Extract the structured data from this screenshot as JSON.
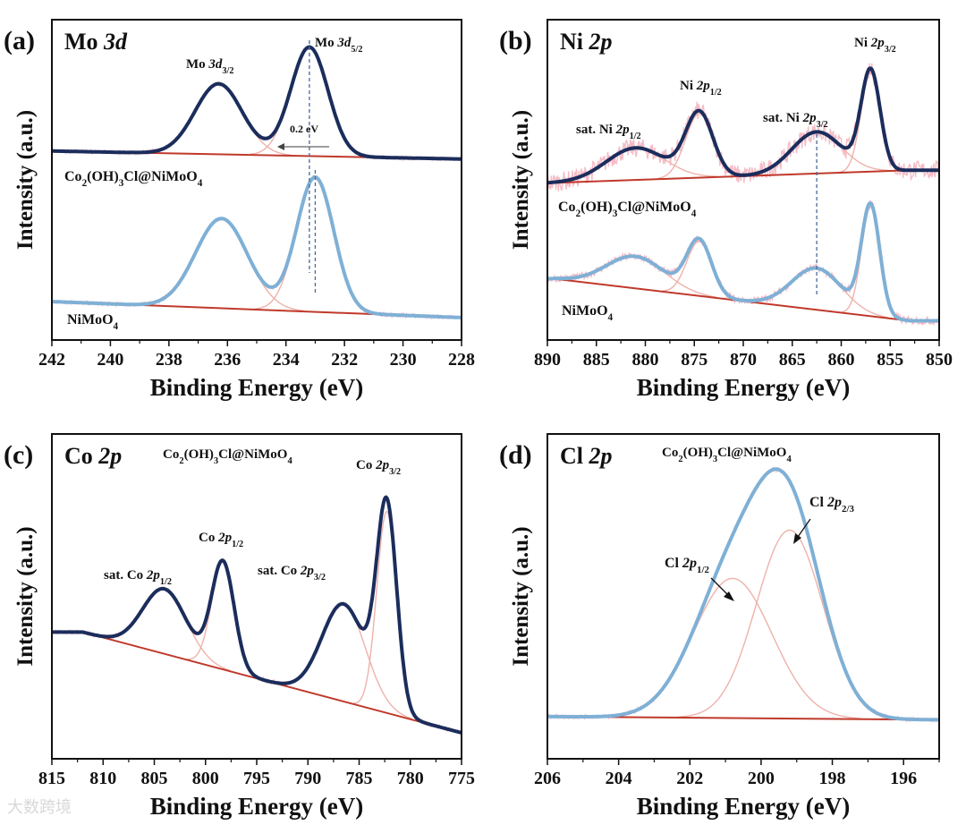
{
  "watermark": "大数跨境",
  "chart_data": [
    {
      "type": "line",
      "panel": "(a)",
      "title": {
        "element": "Mo ",
        "orbital": "3d"
      },
      "xlabel": "Binding Energy (eV)",
      "ylabel": "Intensity (a.u.)",
      "xlim": [
        242,
        228
      ],
      "ylim": [
        0,
        1
      ],
      "xticks": [
        242,
        240,
        238,
        236,
        234,
        232,
        230,
        228
      ],
      "shift_annotation": "0.2 eV",
      "peak_labels": [
        {
          "prefix": "Mo ",
          "orbital": "3d",
          "sub": "3/2"
        },
        {
          "prefix": "Mo ",
          "orbital": "3d",
          "sub": "5/2"
        }
      ],
      "series": [
        {
          "name": "Co2(OH)3Cl@NiMoO4",
          "fit_color": "#1b2d5c",
          "baseline": [
            [
              242,
              0.59
            ],
            [
              228,
              0.565
            ]
          ],
          "peaks": [
            {
              "center": 236.3,
              "height": 0.22,
              "fwhm": 1.9
            },
            {
              "center": 233.2,
              "height": 0.34,
              "fwhm": 1.5
            }
          ]
        },
        {
          "name": "NiMoO4",
          "fit_color": "#7fb0d6",
          "baseline": [
            [
              242,
              0.12
            ],
            [
              228,
              0.07
            ]
          ],
          "peaks": [
            {
              "center": 236.2,
              "height": 0.28,
              "fwhm": 2.1
            },
            {
              "center": 233.0,
              "height": 0.42,
              "fwhm": 1.5
            }
          ]
        }
      ],
      "reference_lines": [
        233.2,
        233.0
      ]
    },
    {
      "type": "line",
      "panel": "(b)",
      "title": {
        "element": "Ni ",
        "orbital": "2p"
      },
      "xlabel": "Binding Energy (eV)",
      "ylabel": "Intensity (a.u.)",
      "xlim": [
        890,
        850
      ],
      "ylim": [
        0,
        1
      ],
      "xticks": [
        890,
        885,
        880,
        875,
        870,
        865,
        860,
        855,
        850
      ],
      "peak_labels": [
        {
          "prefix": "Ni ",
          "orbital": "2p",
          "sub": "3/2"
        },
        {
          "prefix": "Ni ",
          "orbital": "2p",
          "sub": "1/2"
        },
        {
          "prefix": "sat. Ni ",
          "orbital": "2p",
          "sub": "3/2"
        },
        {
          "prefix": "sat. Ni ",
          "orbital": "2p",
          "sub": "1/2"
        }
      ],
      "series": [
        {
          "name": "Co2(OH)3Cl@NiMoO4",
          "fit_color": "#1b2d5c",
          "baseline": [
            [
              890,
              0.49
            ],
            [
              853,
              0.53
            ]
          ],
          "peaks": [
            {
              "center": 881,
              "height": 0.1,
              "fwhm": 7
            },
            {
              "center": 874.5,
              "height": 0.2,
              "fwhm": 3.3
            },
            {
              "center": 862.5,
              "height": 0.13,
              "fwhm": 6
            },
            {
              "center": 857,
              "height": 0.31,
              "fwhm": 2.3
            }
          ]
        },
        {
          "name": "NiMoO4",
          "fit_color": "#7fb0d6",
          "baseline": [
            [
              889,
              0.19
            ],
            [
              853,
              0.06
            ]
          ],
          "peaks": [
            {
              "center": 881,
              "height": 0.1,
              "fwhm": 7
            },
            {
              "center": 874.5,
              "height": 0.17,
              "fwhm": 3
            },
            {
              "center": 862.5,
              "height": 0.13,
              "fwhm": 6
            },
            {
              "center": 857,
              "height": 0.34,
              "fwhm": 2.2
            }
          ]
        }
      ],
      "reference_lines": [
        862.5
      ]
    },
    {
      "type": "line",
      "panel": "(c)",
      "title": {
        "element": "Co ",
        "orbital": "2p"
      },
      "sample": "Co2(OH)3Cl@NiMoO4",
      "xlabel": "Binding Energy (eV)",
      "ylabel": "Intensity (a.u.)",
      "xlim": [
        815,
        775
      ],
      "ylim": [
        0,
        1
      ],
      "xticks": [
        815,
        810,
        805,
        800,
        795,
        790,
        785,
        780,
        775
      ],
      "peak_labels": [
        {
          "prefix": "Co ",
          "orbital": "2p",
          "sub": "3/2"
        },
        {
          "prefix": "Co ",
          "orbital": "2p",
          "sub": "1/2"
        },
        {
          "prefix": "sat. Co ",
          "orbital": "2p",
          "sub": "3/2"
        },
        {
          "prefix": "sat. Co ",
          "orbital": "2p",
          "sub": "1/2"
        }
      ],
      "series": [
        {
          "name": "Co2(OH)3Cl@NiMoO4",
          "fit_color": "#1b2d5c",
          "baseline": [
            [
              812,
              0.39
            ],
            [
              775,
              0.08
            ]
          ],
          "peaks": [
            {
              "center": 804,
              "height": 0.2,
              "fwhm": 5
            },
            {
              "center": 798.3,
              "height": 0.33,
              "fwhm": 2.6
            },
            {
              "center": 786.5,
              "height": 0.3,
              "fwhm": 5
            },
            {
              "center": 782.3,
              "height": 0.62,
              "fwhm": 2.3
            }
          ]
        }
      ]
    },
    {
      "type": "line",
      "panel": "(d)",
      "title": {
        "element": "Cl ",
        "orbital": "2p"
      },
      "sample": "Co2(OH)3Cl@NiMoO4",
      "xlabel": "Binding Energy (eV)",
      "ylabel": "Intensity (a.u.)",
      "xlim": [
        206,
        195
      ],
      "ylim": [
        0,
        1
      ],
      "xticks": [
        206,
        204,
        202,
        200,
        198,
        196
      ],
      "peak_labels": [
        {
          "prefix": "Cl ",
          "orbital": "2p",
          "sub": "2/3"
        },
        {
          "prefix": "Cl ",
          "orbital": "2p",
          "sub": "1/2"
        }
      ],
      "series": [
        {
          "name": "Co2(OH)3Cl@NiMoO4",
          "fit_color": "#7fb0d6",
          "baseline": [
            [
              206,
              0.13
            ],
            [
              195,
              0.12
            ]
          ],
          "peaks": [
            {
              "center": 200.8,
              "height": 0.43,
              "fwhm": 2.6
            },
            {
              "center": 199.2,
              "height": 0.58,
              "fwhm": 2.2
            }
          ]
        }
      ]
    }
  ]
}
